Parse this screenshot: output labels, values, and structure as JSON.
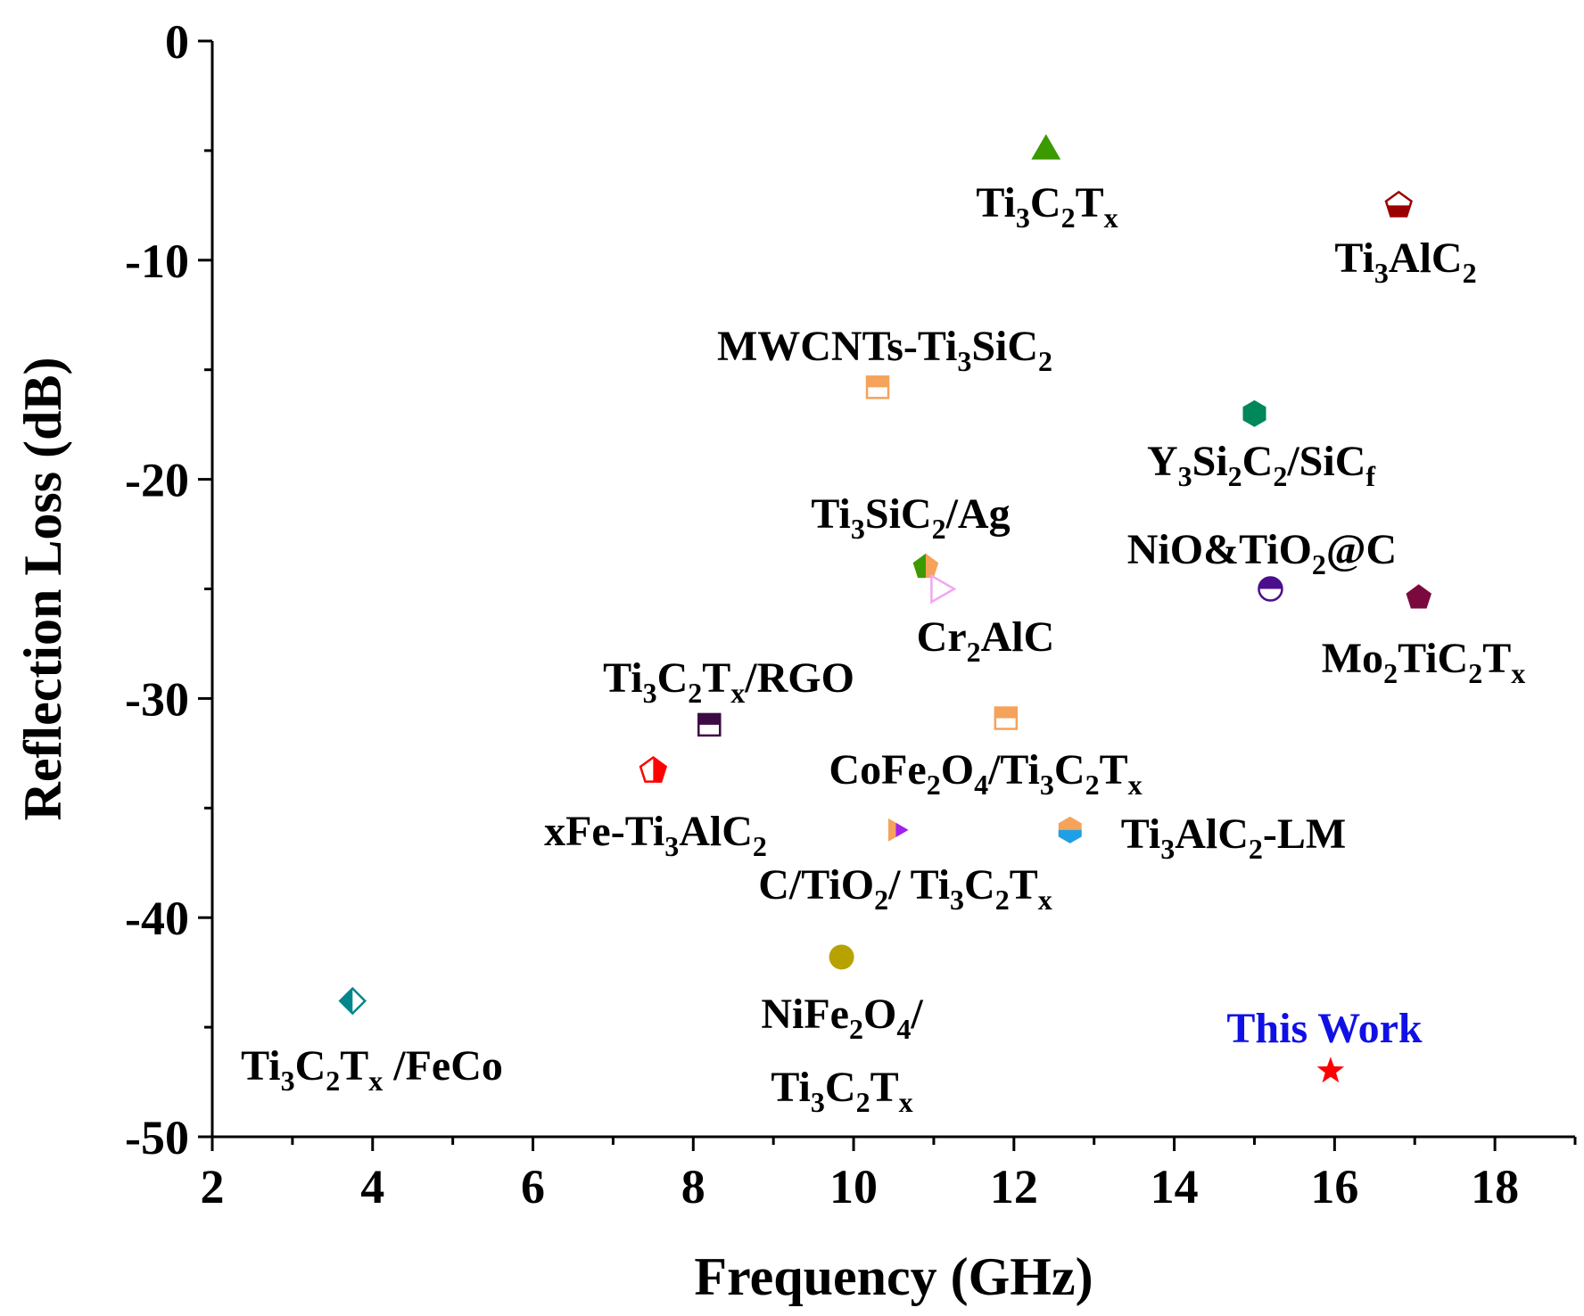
{
  "chart_data": {
    "type": "scatter",
    "title": "",
    "xlabel": "Frequency (GHz)",
    "ylabel": "Reflection Loss (dB)",
    "xlim": [
      2,
      19
    ],
    "ylim": [
      -50,
      0
    ],
    "xticks": [
      "2",
      "4",
      "6",
      "8",
      "10",
      "12",
      "14",
      "16",
      "18"
    ],
    "yticks": [
      "0",
      "-10",
      "-20",
      "-30",
      "-40",
      "-50"
    ],
    "grid": false,
    "legend": "none",
    "points": [
      {
        "name": "Ti3C2Tx",
        "label_parts": [
          [
            "Ti",
            ""
          ],
          [
            "3",
            "sub"
          ],
          [
            "C",
            ""
          ],
          [
            "2",
            "sub"
          ],
          [
            "T",
            ""
          ],
          [
            "x",
            "sub"
          ]
        ],
        "x": 12.4,
        "y": -4.9,
        "marker": "triangle-up",
        "color": "#3a9a00",
        "highlight": false
      },
      {
        "name": "Ti3AlC2",
        "label_parts": [
          [
            "Ti",
            ""
          ],
          [
            "3",
            "sub"
          ],
          [
            "AlC",
            ""
          ],
          [
            "2",
            "sub"
          ]
        ],
        "x": 16.8,
        "y": -7.5,
        "marker": "pentagon-half",
        "color": "#9b0000",
        "highlight": false
      },
      {
        "name": "MWCNTs-Ti3SiC2",
        "label_parts": [
          [
            "MWCNTs-Ti",
            ""
          ],
          [
            "3",
            "sub"
          ],
          [
            "SiC",
            ""
          ],
          [
            "2",
            "sub"
          ]
        ],
        "x": 10.3,
        "y": -15.8,
        "marker": "square-half",
        "color": "#f5a25a",
        "highlight": false
      },
      {
        "name": "Y3Si2C2/SiCf",
        "label_parts": [
          [
            "Y",
            ""
          ],
          [
            "3",
            "sub"
          ],
          [
            "Si",
            ""
          ],
          [
            "2",
            "sub"
          ],
          [
            "C",
            ""
          ],
          [
            "2",
            "sub"
          ],
          [
            "/SiC",
            ""
          ],
          [
            "f",
            "sub"
          ]
        ],
        "x": 15.0,
        "y": -17.0,
        "marker": "hexagon",
        "color": "#00875a",
        "highlight": false
      },
      {
        "name": "Ti3SiC2/Ag",
        "label_parts": [
          [
            "Ti",
            ""
          ],
          [
            "3",
            "sub"
          ],
          [
            "SiC",
            ""
          ],
          [
            "2",
            "sub"
          ],
          [
            "/Ag",
            ""
          ]
        ],
        "x": 10.9,
        "y": -24.0,
        "marker": "pentagon-split",
        "color": "#f5a25a",
        "color2": "#3a9a00",
        "highlight": false
      },
      {
        "name": "NiO&TiO2@C",
        "label_parts": [
          [
            "NiO&TiO",
            ""
          ],
          [
            "2",
            "sub"
          ],
          [
            "@C",
            ""
          ]
        ],
        "x": 15.2,
        "y": -25.0,
        "marker": "circle-half",
        "color": "#4b0e8c",
        "highlight": false
      },
      {
        "name": "Cr2AlC",
        "label_parts": [
          [
            "Cr",
            ""
          ],
          [
            "2",
            "sub"
          ],
          [
            "AlC",
            ""
          ]
        ],
        "x": 11.1,
        "y": -25.0,
        "marker": "triangle-right-open",
        "color": "#f3a6f0",
        "highlight": false
      },
      {
        "name": "Mo2TiC2Tx",
        "label_parts": [
          [
            "Mo",
            ""
          ],
          [
            "2",
            "sub"
          ],
          [
            "TiC",
            ""
          ],
          [
            "2",
            "sub"
          ],
          [
            "T",
            ""
          ],
          [
            "x",
            "sub"
          ]
        ],
        "x": 17.05,
        "y": -25.4,
        "marker": "pentagon",
        "color": "#7a0a3e",
        "highlight": false
      },
      {
        "name": "Ti3C2Tx/RGO",
        "label_parts": [
          [
            "Ti",
            ""
          ],
          [
            "3",
            "sub"
          ],
          [
            "C",
            ""
          ],
          [
            "2",
            "sub"
          ],
          [
            "T",
            ""
          ],
          [
            "x",
            "sub"
          ],
          [
            "/RGO",
            ""
          ]
        ],
        "x": 8.2,
        "y": -31.2,
        "marker": "square-half",
        "color": "#3d0a45",
        "highlight": false
      },
      {
        "name": "CoFe2O4/Ti3C2Tx",
        "label_parts": [
          [
            "CoFe",
            ""
          ],
          [
            "2",
            "sub"
          ],
          [
            "O",
            ""
          ],
          [
            "4",
            "sub"
          ],
          [
            "/Ti",
            ""
          ],
          [
            "3",
            "sub"
          ],
          [
            "C",
            ""
          ],
          [
            "2",
            "sub"
          ],
          [
            "T",
            ""
          ],
          [
            "x",
            "sub"
          ]
        ],
        "x": 11.9,
        "y": -30.9,
        "marker": "square-half",
        "color": "#f5a25a",
        "highlight": false
      },
      {
        "name": "xFe-Ti3AlC2",
        "label_parts": [
          [
            "xFe-Ti",
            ""
          ],
          [
            "3",
            "sub"
          ],
          [
            "AlC",
            ""
          ],
          [
            "2",
            "sub"
          ]
        ],
        "x": 7.5,
        "y": -33.3,
        "marker": "pentagon-half-side",
        "color": "#ff0000",
        "highlight": false
      },
      {
        "name": "C/TiO2/ Ti3C2Tx",
        "label_parts": [
          [
            "C/TiO",
            ""
          ],
          [
            "2",
            "sub"
          ],
          [
            "/ Ti",
            ""
          ],
          [
            "3",
            "sub"
          ],
          [
            "C",
            ""
          ],
          [
            "2",
            "sub"
          ],
          [
            "T",
            ""
          ],
          [
            "x",
            "sub"
          ]
        ],
        "x": 10.55,
        "y": -36.0,
        "marker": "triangle-right-split",
        "color": "#f5a25a",
        "color2": "#a020f0",
        "highlight": false
      },
      {
        "name": "Ti3AlC2-LM",
        "label_parts": [
          [
            "Ti",
            ""
          ],
          [
            "3",
            "sub"
          ],
          [
            "AlC",
            ""
          ],
          [
            "2",
            "sub"
          ],
          [
            "-LM",
            ""
          ]
        ],
        "x": 12.7,
        "y": -36.0,
        "marker": "hexagon-split",
        "color": "#f5a25a",
        "color2": "#1ea0e6",
        "highlight": false
      },
      {
        "name": "NiFe2O4/ Ti3C2Tx",
        "label_parts": [
          [
            "NiFe",
            ""
          ],
          [
            "2",
            "sub"
          ],
          [
            "O",
            ""
          ],
          [
            "4",
            "sub"
          ],
          [
            "/",
            ""
          ]
        ],
        "label_parts_2": [
          [
            "Ti",
            ""
          ],
          [
            "3",
            "sub"
          ],
          [
            "C",
            ""
          ],
          [
            "2",
            "sub"
          ],
          [
            "T",
            ""
          ],
          [
            "x",
            "sub"
          ]
        ],
        "x": 9.85,
        "y": -41.8,
        "marker": "circle",
        "color": "#b8a200",
        "highlight": false
      },
      {
        "name": "Ti3C2Tx /FeCo",
        "label_parts": [
          [
            "Ti",
            ""
          ],
          [
            "3",
            "sub"
          ],
          [
            "C",
            ""
          ],
          [
            "2",
            "sub"
          ],
          [
            "T",
            ""
          ],
          [
            "x",
            "sub"
          ],
          [
            " /FeCo",
            ""
          ]
        ],
        "x": 3.75,
        "y": -43.8,
        "marker": "diamond-half",
        "color": "#00868b",
        "highlight": false
      },
      {
        "name": "This Work",
        "label_parts": [
          [
            "This Work",
            ""
          ]
        ],
        "x": 15.95,
        "y": -47.0,
        "marker": "star",
        "color": "#ff0000",
        "highlight": true
      }
    ]
  }
}
